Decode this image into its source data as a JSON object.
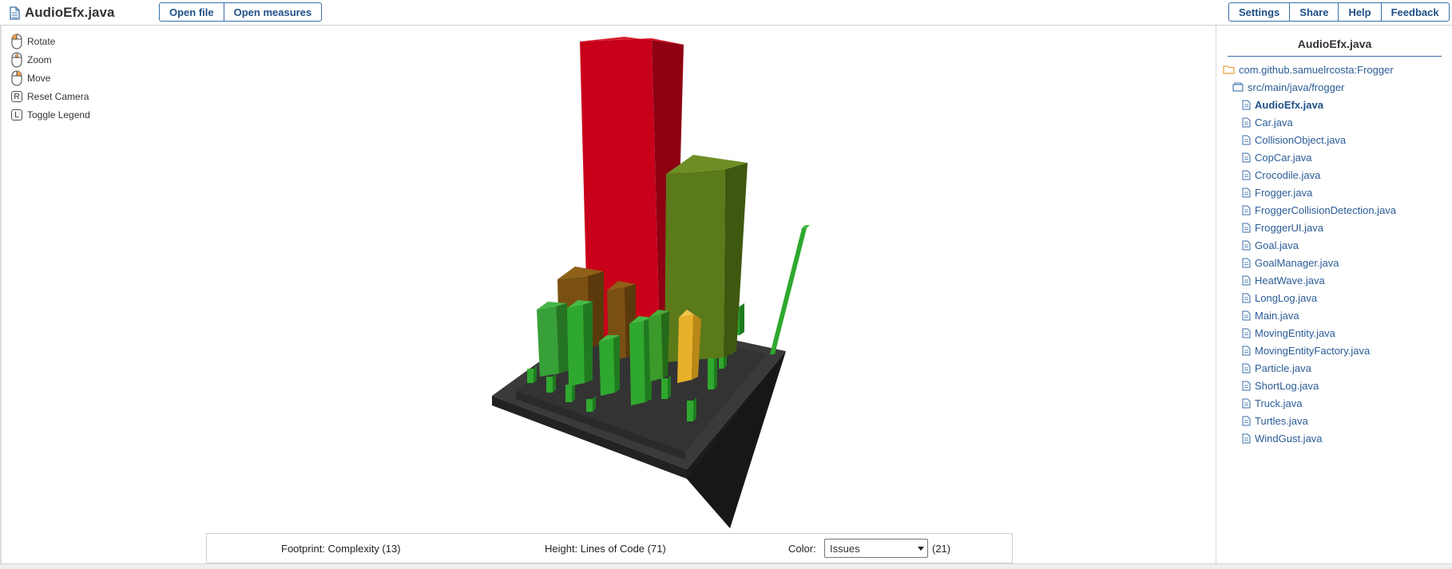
{
  "header": {
    "file_name": "AudioEfx.java",
    "buttons_left": [
      "Open file",
      "Open measures"
    ],
    "buttons_right": [
      "Settings",
      "Share",
      "Help",
      "Feedback"
    ]
  },
  "controls": [
    {
      "icon": "mouse-left-icon",
      "label": "Rotate"
    },
    {
      "icon": "mouse-wheel-icon",
      "label": "Zoom"
    },
    {
      "icon": "mouse-right-icon",
      "label": "Move"
    },
    {
      "icon": "key-r-icon",
      "key": "R",
      "label": "Reset Camera"
    },
    {
      "icon": "key-l-icon",
      "key": "L",
      "label": "Toggle Legend"
    }
  ],
  "legend": {
    "footprint": "Footprint: Complexity (13)",
    "height": "Height: Lines of Code (71)",
    "color_label": "Color:",
    "color_value": "Issues",
    "color_count": "(21)"
  },
  "sidebar": {
    "title": "AudioEfx.java",
    "project": "com.github.samuelrcosta:Frogger",
    "package": "src/main/java/frogger",
    "files": [
      "AudioEfx.java",
      "Car.java",
      "CollisionObject.java",
      "CopCar.java",
      "Crocodile.java",
      "Frogger.java",
      "FroggerCollisionDetection.java",
      "FroggerUI.java",
      "Goal.java",
      "GoalManager.java",
      "HeatWave.java",
      "LongLog.java",
      "Main.java",
      "MovingEntity.java",
      "MovingEntityFactory.java",
      "Particle.java",
      "ShortLog.java",
      "Truck.java",
      "Turtles.java",
      "WindGust.java"
    ],
    "selected_file": "AudioEfx.java"
  },
  "colors": {
    "accent": "#3a6ea8",
    "issues_high": "#c8001a",
    "issues_mid": "#7a5012",
    "issues_warn": "#e8b02a",
    "issues_low": "#2fa82f",
    "base": "#2b2b2b"
  }
}
